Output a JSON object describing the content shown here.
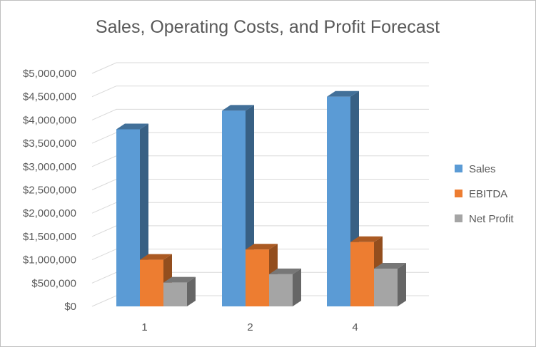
{
  "chart_data": {
    "type": "bar",
    "title": "Sales, Operating Costs, and Profit Forecast",
    "xlabel": "",
    "ylabel": "",
    "categories": [
      "1",
      "2",
      "4"
    ],
    "series": [
      {
        "name": "Sales",
        "values": [
          3800000,
          4200000,
          4500000
        ],
        "color": "#5b9bd5"
      },
      {
        "name": "EBITDA",
        "values": [
          1000000,
          1220000,
          1380000
        ],
        "color": "#ed7d31"
      },
      {
        "name": "Net Profit",
        "values": [
          510000,
          690000,
          810000
        ],
        "color": "#a5a5a5"
      }
    ],
    "ylim": [
      0,
      5000000
    ],
    "yticks": [
      0,
      500000,
      1000000,
      1500000,
      2000000,
      2500000,
      3000000,
      3500000,
      4000000,
      4500000,
      5000000
    ],
    "ytick_labels": [
      "$0",
      "$500,000",
      "$1,000,000",
      "$1,500,000",
      "$2,000,000",
      "$2,500,000",
      "$3,000,000",
      "$3,500,000",
      "$4,000,000",
      "$4,500,000",
      "$5,000,000"
    ],
    "grid": true,
    "legend_position": "right",
    "style": "3d-clustered-column"
  }
}
